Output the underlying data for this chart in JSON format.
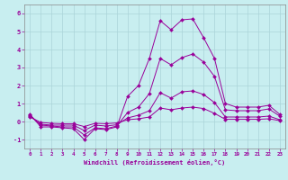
{
  "xlabel": "Windchill (Refroidissement éolien,°C)",
  "bg_color": "#c8eef0",
  "line_color": "#990099",
  "grid_color": "#aad4d8",
  "xlim": [
    -0.5,
    23.5
  ],
  "ylim": [
    -1.5,
    6.5
  ],
  "xticks": [
    0,
    1,
    2,
    3,
    4,
    5,
    6,
    7,
    8,
    9,
    10,
    11,
    12,
    13,
    14,
    15,
    16,
    17,
    18,
    19,
    20,
    21,
    22,
    23
  ],
  "yticks": [
    -1,
    0,
    1,
    2,
    3,
    4,
    5,
    6
  ],
  "series": [
    [
      0.4,
      -0.3,
      -0.3,
      -0.35,
      -0.4,
      -1.0,
      -0.4,
      -0.45,
      -0.3,
      1.4,
      2.0,
      3.5,
      5.6,
      5.1,
      5.65,
      5.7,
      4.65,
      3.5,
      1.0,
      0.8,
      0.8,
      0.8,
      0.9,
      0.4
    ],
    [
      0.35,
      -0.2,
      -0.25,
      -0.3,
      -0.3,
      -0.75,
      -0.35,
      -0.4,
      -0.25,
      0.5,
      0.8,
      1.55,
      3.5,
      3.15,
      3.55,
      3.75,
      3.3,
      2.5,
      0.65,
      0.6,
      0.6,
      0.6,
      0.7,
      0.3
    ],
    [
      0.3,
      -0.15,
      -0.2,
      -0.2,
      -0.2,
      -0.5,
      -0.2,
      -0.25,
      -0.18,
      0.2,
      0.35,
      0.6,
      1.6,
      1.3,
      1.65,
      1.7,
      1.5,
      1.05,
      0.25,
      0.25,
      0.25,
      0.25,
      0.3,
      0.1
    ],
    [
      0.25,
      -0.05,
      -0.1,
      -0.12,
      -0.12,
      -0.28,
      -0.1,
      -0.12,
      -0.08,
      0.1,
      0.15,
      0.25,
      0.75,
      0.65,
      0.75,
      0.8,
      0.72,
      0.45,
      0.12,
      0.12,
      0.12,
      0.12,
      0.15,
      0.05
    ]
  ]
}
